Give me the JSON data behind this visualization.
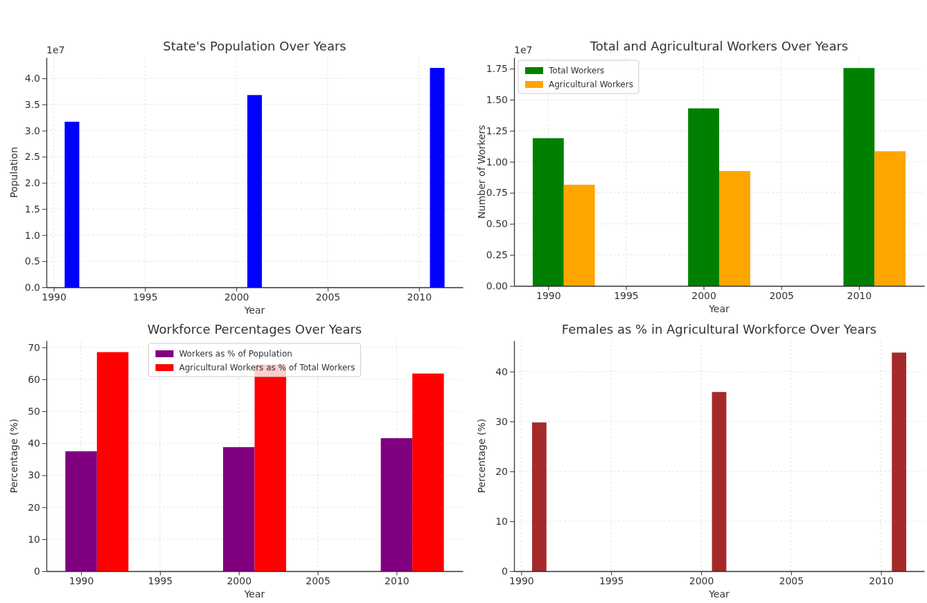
{
  "chart_data": [
    {
      "type": "bar",
      "title": "State's Population Over Years",
      "xlabel": "Year",
      "ylabel": "Population",
      "annotations": [
        "1e7"
      ],
      "xlim": [
        1989.6,
        2012.4
      ],
      "xticks": [
        1990,
        1995,
        2000,
        2005,
        2010
      ],
      "ylim": [
        0,
        4.4
      ],
      "yticks": [
        {
          "value": 0,
          "label": "0.0"
        },
        0.5,
        {
          "value": 1,
          "label": "1.0"
        },
        1.5,
        {
          "value": 2,
          "label": "2.0"
        },
        2.5,
        {
          "value": 3,
          "label": "3.0"
        },
        3.5,
        {
          "value": 4,
          "label": "4.0"
        }
      ],
      "grid": true,
      "series": [
        {
          "color": "#0000ff",
          "x": [
            1991,
            2001,
            2011
          ],
          "values": [
            3.17,
            3.68,
            4.2
          ]
        }
      ]
    },
    {
      "type": "bar",
      "title": "Total and Agricultural Workers Over Years",
      "xlabel": "Year",
      "ylabel": "Number of Workers",
      "annotations": [
        "1e7"
      ],
      "xlim": [
        1987.8,
        2014.2
      ],
      "xticks": [
        1990,
        1995,
        2000,
        2005,
        2010
      ],
      "ylim": [
        0,
        1.84
      ],
      "yticks": [
        {
          "value": 0,
          "label": "0.00"
        },
        0.25,
        {
          "value": 0.5,
          "label": "0.50"
        },
        0.75,
        {
          "value": 1,
          "label": "1.00"
        },
        1.25,
        {
          "value": 1.5,
          "label": "1.50"
        },
        1.75
      ],
      "grid": true,
      "legend": "top left",
      "series": [
        {
          "name": "Total Workers",
          "color": "#008000",
          "x": [
            1990,
            2000,
            2010
          ],
          "values": [
            1.19,
            1.43,
            1.755
          ]
        },
        {
          "name": "Agricultural Workers",
          "color": "#ffa500",
          "x": [
            1992,
            2002,
            2012
          ],
          "values": [
            0.815,
            0.925,
            1.085
          ]
        }
      ]
    },
    {
      "type": "bar",
      "title": "Workforce Percentages Over Years",
      "xlabel": "Year",
      "ylabel": "Percentage (%)",
      "xlim": [
        1987.8,
        2014.2
      ],
      "xticks": [
        1990,
        1995,
        2000,
        2005,
        2010
      ],
      "ylim": [
        0,
        72.1
      ],
      "yticks": [
        0,
        10,
        20,
        30,
        40,
        50,
        60,
        70
      ],
      "grid": true,
      "legend": "top",
      "series": [
        {
          "name": "Workers as % of Population",
          "color": "#800080",
          "x": [
            1990,
            2000,
            2010
          ],
          "values": [
            37.5,
            38.8,
            41.6
          ]
        },
        {
          "name": "Agricultural Workers as % of Total Workers",
          "color": "#ff0000",
          "x": [
            1992,
            2002,
            2012
          ],
          "values": [
            68.5,
            64.6,
            61.8
          ]
        }
      ]
    },
    {
      "type": "bar",
      "title": "Females as % in Agricultural Workforce Over Years",
      "xlabel": "Year",
      "ylabel": "Percentage (%)",
      "xlim": [
        1989.6,
        2012.4
      ],
      "xticks": [
        1990,
        1995,
        2000,
        2005,
        2010
      ],
      "ylim": [
        0,
        46.2
      ],
      "yticks": [
        0,
        10,
        20,
        30,
        40
      ],
      "grid": true,
      "series": [
        {
          "color": "#a52a2a",
          "x": [
            1991,
            2001,
            2011
          ],
          "values": [
            29.8,
            35.9,
            43.8
          ]
        }
      ]
    }
  ]
}
